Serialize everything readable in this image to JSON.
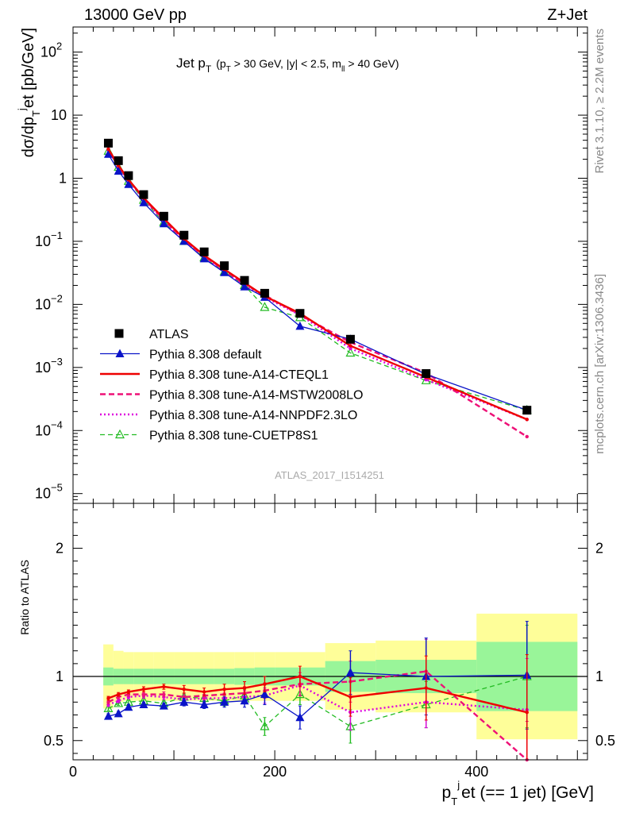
{
  "header": {
    "left_label": "13000 GeV pp",
    "right_label": "Z+Jet"
  },
  "side_labels": {
    "rivet": "Rivet 3.1.10, ≥ 2.2M events",
    "mcplots": "mcplots.cern.ch [arXiv:1306.3436]"
  },
  "chart_data": [
    {
      "type": "line",
      "title": "Jet pT (pT > 30 GeV, |y| < 2.5, mll > 40 GeV)",
      "title_parts": {
        "main": "Jet p",
        "main_sub": "T",
        "p1": "(p",
        "p1_sub": "T",
        "p2": "> 30 GeV, |y| < 2.5, m",
        "p2_sub": "ll",
        "p3": "> 40 GeV)"
      },
      "ylabel": "dσ/dpᵀʲet [pb/GeV]",
      "ylabel_parts": {
        "a": "dσ/dp",
        "b_sub": "T",
        "c_sup": "j",
        "d": "et [pb/GeV]"
      },
      "yscale": "log",
      "ylim": [
        7e-06,
        250
      ],
      "y_ticks": [
        {
          "v": 100,
          "m": "10",
          "e": "2"
        },
        {
          "v": 10,
          "m": "10",
          "e": ""
        },
        {
          "v": 1,
          "m": "1",
          "e": ""
        },
        {
          "v": 0.1,
          "m": "10",
          "e": "−1"
        },
        {
          "v": 0.01,
          "m": "10",
          "e": "−2"
        },
        {
          "v": 0.001,
          "m": "10",
          "e": "−3"
        },
        {
          "v": 0.0001,
          "m": "10",
          "e": "−4"
        },
        {
          "v": 1e-05,
          "m": "10",
          "e": "−5"
        }
      ],
      "xlim": [
        0,
        510
      ],
      "x": [
        35,
        45,
        55,
        70,
        90,
        110,
        130,
        150,
        170,
        190,
        225,
        275,
        350,
        450
      ],
      "x_bin_edges": [
        30,
        40,
        50,
        60,
        80,
        100,
        120,
        140,
        160,
        180,
        200,
        250,
        300,
        400,
        500
      ],
      "watermark": "ATLAS_2017_I1514251",
      "legend_placement": "lower-left",
      "series": [
        {
          "name": "ATLAS",
          "style": "data",
          "values": [
            3.6,
            1.9,
            1.1,
            0.55,
            0.25,
            0.125,
            0.068,
            0.041,
            0.024,
            0.015,
            0.0072,
            0.0028,
            0.0008,
            0.00021
          ]
        },
        {
          "name": "Pythia 8.308 default",
          "style": "blue-triangle",
          "values": [
            2.4,
            1.3,
            0.8,
            0.41,
            0.19,
            0.1,
            0.053,
            0.032,
            0.019,
            0.013,
            0.0045,
            0.0028,
            0.00078,
            0.00021
          ]
        },
        {
          "name": "Pythia 8.308 tune-A14-CTEQL1",
          "style": "red-solid",
          "values": [
            2.9,
            1.6,
            0.95,
            0.49,
            0.23,
            0.11,
            0.06,
            0.036,
            0.022,
            0.0135,
            0.0072,
            0.0022,
            0.0007,
            0.00015
          ]
        },
        {
          "name": "Pythia 8.308 tune-A14-MSTW2008LO",
          "style": "magenta-dashed",
          "values": [
            2.9,
            1.55,
            0.95,
            0.48,
            0.22,
            0.105,
            0.058,
            0.035,
            0.021,
            0.014,
            0.0068,
            0.0025,
            0.00082,
            8e-05
          ]
        },
        {
          "name": "Pythia 8.308 tune-A14-NNPDF2.3LO",
          "style": "magenta-dotted",
          "values": [
            2.8,
            1.5,
            0.92,
            0.47,
            0.21,
            0.1,
            0.056,
            0.034,
            0.02,
            0.013,
            0.0068,
            0.002,
            0.00064,
            0.00015
          ]
        },
        {
          "name": "Pythia 8.308 tune-CUETP8S1",
          "style": "green-dashed-open",
          "values": [
            2.7,
            1.5,
            0.9,
            0.45,
            0.2,
            0.1,
            0.055,
            0.033,
            0.02,
            0.009,
            0.0062,
            0.0017,
            0.00062,
            0.00021
          ]
        }
      ]
    },
    {
      "type": "line",
      "ylabel": "Ratio to ATLAS",
      "xlabel": "pᵀʲet (== 1 jet) [GeV]",
      "xlabel_parts": {
        "a": "p",
        "b_sub": "T",
        "c_sup": "j",
        "d": "et (== 1 jet) [GeV]"
      },
      "ylim": [
        0.35,
        2.35
      ],
      "xlim": [
        0,
        510
      ],
      "y_ticks": [
        "0.5",
        "1",
        "2"
      ],
      "x_ticks": [
        "0",
        "200",
        "400"
      ],
      "x": [
        35,
        45,
        55,
        70,
        90,
        110,
        130,
        150,
        170,
        190,
        225,
        275,
        350,
        450
      ],
      "band_inner": [
        0.07,
        0.06,
        0.06,
        0.06,
        0.06,
        0.06,
        0.06,
        0.06,
        0.065,
        0.07,
        0.07,
        0.12,
        0.13,
        0.27
      ],
      "band_outer": [
        0.25,
        0.2,
        0.19,
        0.19,
        0.19,
        0.19,
        0.19,
        0.19,
        0.19,
        0.19,
        0.19,
        0.26,
        0.28,
        0.49
      ],
      "series": [
        {
          "name": "Pythia 8.308 default",
          "style": "blue-triangle",
          "values": [
            0.69,
            0.71,
            0.76,
            0.78,
            0.77,
            0.8,
            0.78,
            0.8,
            0.81,
            0.86,
            0.68,
            1.03,
            1.0,
            1.01
          ],
          "errors": [
            0.02,
            0.02,
            0.02,
            0.02,
            0.02,
            0.03,
            0.03,
            0.04,
            0.05,
            0.08,
            0.09,
            0.17,
            0.3,
            0.42
          ]
        },
        {
          "name": "Pythia 8.308 tune-A14-CTEQL1",
          "style": "red-solid",
          "values": [
            0.83,
            0.86,
            0.88,
            0.9,
            0.92,
            0.9,
            0.88,
            0.9,
            0.91,
            0.94,
            1.0,
            0.84,
            0.91,
            0.72
          ],
          "errors": [
            0.015,
            0.015,
            0.015,
            0.02,
            0.02,
            0.03,
            0.03,
            0.04,
            0.05,
            0.06,
            0.08,
            0.15,
            0.25,
            0.45
          ]
        },
        {
          "name": "Pythia 8.308 tune-A14-MSTW2008LO",
          "style": "magenta-dashed",
          "values": [
            0.8,
            0.84,
            0.86,
            0.86,
            0.86,
            0.84,
            0.85,
            0.86,
            0.87,
            0.89,
            0.94,
            0.96,
            1.04,
            0.35
          ],
          "errors": [
            0.015,
            0.015,
            0.015,
            0.02,
            0.02,
            0.03,
            0.03,
            0.04,
            0.05,
            0.06,
            0.09,
            0.16,
            0.25,
            0.3
          ]
        },
        {
          "name": "Pythia 8.308 tune-A14-NNPDF2.3LO",
          "style": "magenta-dotted",
          "values": [
            0.78,
            0.81,
            0.84,
            0.85,
            0.84,
            0.82,
            0.83,
            0.83,
            0.84,
            0.85,
            0.93,
            0.72,
            0.8,
            0.74
          ],
          "errors": [
            0.015,
            0.015,
            0.015,
            0.02,
            0.02,
            0.03,
            0.03,
            0.04,
            0.05,
            0.06,
            0.08,
            0.14,
            0.2,
            0.4
          ]
        },
        {
          "name": "Pythia 8.308 tune-CUETP8S1",
          "style": "green-dashed-open",
          "values": [
            0.75,
            0.79,
            0.8,
            0.81,
            0.79,
            0.84,
            0.83,
            0.81,
            0.85,
            0.61,
            0.86,
            0.61,
            0.78,
            1.0
          ],
          "errors": [
            0.015,
            0.015,
            0.015,
            0.02,
            0.02,
            0.03,
            0.03,
            0.04,
            0.05,
            0.07,
            0.08,
            0.13,
            0.18,
            0.4
          ]
        }
      ]
    }
  ],
  "colors": {
    "data": "#000000",
    "default": "#0a14c8",
    "cteql1": "#ee0000",
    "mstw": "#ee1177",
    "nnpdf": "#dd00dd",
    "cuetp": "#22bb22",
    "band_outer": "#fefe99",
    "band_inner": "#99f599"
  }
}
